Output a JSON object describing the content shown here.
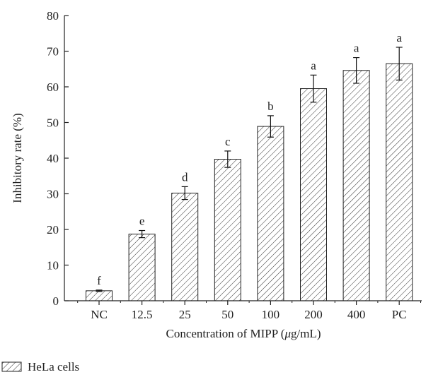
{
  "chart_data": {
    "type": "bar",
    "xlabel_prefix": "Concentration of MIPP (",
    "xlabel_mu": "μ",
    "xlabel_suffix": "g/mL)",
    "ylabel": "Inhibitory rate (%)",
    "ylim": [
      0,
      80
    ],
    "yticks": [
      0,
      10,
      20,
      30,
      40,
      50,
      60,
      70,
      80
    ],
    "grid": false,
    "legend_position": "bottom-left",
    "categories": [
      "NC",
      "12.5",
      "25",
      "50",
      "100",
      "200",
      "400",
      "PC"
    ],
    "series": [
      {
        "name": "HeLa cells",
        "values": [
          2.8,
          18.7,
          30.2,
          39.7,
          48.9,
          59.5,
          64.6,
          66.5
        ],
        "errors": [
          0.2,
          1.0,
          1.8,
          2.3,
          3.0,
          3.8,
          3.6,
          4.6
        ],
        "significance": [
          "f",
          "e",
          "d",
          "c",
          "b",
          "a",
          "a",
          "a"
        ]
      }
    ]
  }
}
